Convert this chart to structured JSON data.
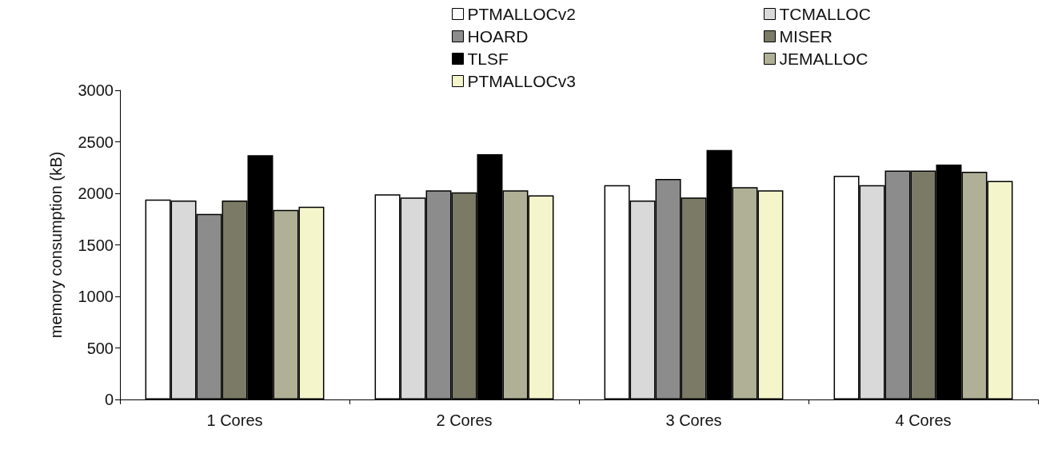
{
  "chart_data": {
    "type": "bar",
    "ylabel": "memory consumption (kB)",
    "categories": [
      "1 Cores",
      "2 Cores",
      "3 Cores",
      "4 Cores"
    ],
    "series": [
      {
        "name": "PTMALLOCv2",
        "color": "#ffffff",
        "values": [
          1940,
          1990,
          2080,
          2170
        ]
      },
      {
        "name": "TCMALLOC",
        "color": "#d9d9d9",
        "values": [
          1930,
          1960,
          1930,
          2080
        ]
      },
      {
        "name": "HOARD",
        "color": "#8c8c8c",
        "values": [
          1800,
          2030,
          2140,
          2220
        ]
      },
      {
        "name": "MISER",
        "color": "#7a7a66",
        "values": [
          1930,
          2010,
          1960,
          2220
        ]
      },
      {
        "name": "TLSF",
        "color": "#000000",
        "values": [
          2370,
          2380,
          2420,
          2280
        ]
      },
      {
        "name": "JEMALLOC",
        "color": "#b0b096",
        "values": [
          1840,
          2030,
          2060,
          2210
        ]
      },
      {
        "name": "PTMALLOCv3",
        "color": "#f5f5cc",
        "values": [
          1870,
          1980,
          2030,
          2120
        ]
      }
    ],
    "ylim": [
      0,
      3000
    ],
    "yticks": [
      0,
      500,
      1000,
      1500,
      2000,
      2500,
      3000
    ],
    "grid": false,
    "legend": "top right"
  }
}
